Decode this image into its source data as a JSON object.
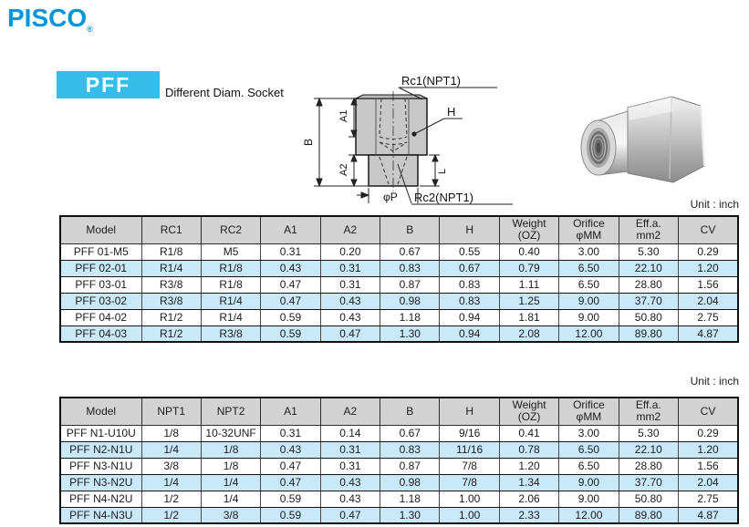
{
  "brand": {
    "logo": "PISCO",
    "registered": "®"
  },
  "header": {
    "series": "PFF",
    "title": "Different Diam. Socket"
  },
  "unit_note": "Unit : inch",
  "diagram": {
    "labels": {
      "rc1": "Rc1(NPT1)",
      "rc2": "Rc2(NPT1)",
      "h": "H",
      "b": "B",
      "a1": "A1",
      "a2": "A2",
      "l": "L",
      "phi_p": "φP"
    }
  },
  "colors": {
    "logo_blue": "#0096dc",
    "accent_cyan": "#35bce9",
    "row_blue": "#c9e9f8",
    "header_gray": "#d3d3d3",
    "body_gray": "#c8c8c8"
  },
  "tables": [
    {
      "name": "rc-spec-table",
      "columns": [
        "Model",
        "RC1",
        "RC2",
        "A1",
        "A2",
        "B",
        "H",
        "Weight\n(OZ)",
        "Orifice\nφMM",
        "Eff.a.\nmm2",
        "CV"
      ],
      "rows": [
        [
          "PFF 01-M5",
          "R1/8",
          "M5",
          "0.31",
          "0.20",
          "0.67",
          "0.55",
          "0.40",
          "3.00",
          "5.30",
          "0.29"
        ],
        [
          "PFF 02-01",
          "R1/4",
          "R1/8",
          "0.43",
          "0.31",
          "0.83",
          "0.67",
          "0.79",
          "6.50",
          "22.10",
          "1.20"
        ],
        [
          "PFF 03-01",
          "R3/8",
          "R1/8",
          "0.47",
          "0.31",
          "0.87",
          "0.83",
          "1.11",
          "6.50",
          "28.80",
          "1.56"
        ],
        [
          "PFF 03-02",
          "R3/8",
          "R1/4",
          "0.47",
          "0.43",
          "0.98",
          "0.83",
          "1.25",
          "9.00",
          "37.70",
          "2.04"
        ],
        [
          "PFF 04-02",
          "R1/2",
          "R1/4",
          "0.59",
          "0.43",
          "1.18",
          "0.94",
          "1.81",
          "9.00",
          "50.80",
          "2.75"
        ],
        [
          "PFF 04-03",
          "R1/2",
          "R3/8",
          "0.59",
          "0.47",
          "1.30",
          "0.94",
          "2.08",
          "12.00",
          "89.80",
          "4.87"
        ]
      ]
    },
    {
      "name": "npt-spec-table",
      "columns": [
        "Model",
        "NPT1",
        "NPT2",
        "A1",
        "A2",
        "B",
        "H",
        "Weight\n(OZ)",
        "Orifice\nφMM",
        "Eff.a.\nmm2",
        "CV"
      ],
      "rows": [
        [
          "PFF N1-U10U",
          "1/8",
          "10-32UNF",
          "0.31",
          "0.14",
          "0.67",
          "9/16",
          "0.41",
          "3.00",
          "5.30",
          "0.29"
        ],
        [
          "PFF N2-N1U",
          "1/4",
          "1/8",
          "0.43",
          "0.31",
          "0.83",
          "11/16",
          "0.78",
          "6.50",
          "22.10",
          "1.20"
        ],
        [
          "PFF N3-N1U",
          "3/8",
          "1/8",
          "0.47",
          "0.31",
          "0.87",
          "7/8",
          "1.20",
          "6.50",
          "28.80",
          "1.56"
        ],
        [
          "PFF N3-N2U",
          "1/4",
          "1/4",
          "0.47",
          "0.43",
          "0.98",
          "7/8",
          "1.34",
          "9.00",
          "37.70",
          "2.04"
        ],
        [
          "PFF N4-N2U",
          "1/2",
          "1/4",
          "0.59",
          "0.43",
          "1.18",
          "1.00",
          "2.06",
          "9.00",
          "50.80",
          "2.75"
        ],
        [
          "PFF N4-N3U",
          "1/2",
          "3/8",
          "0.59",
          "0.47",
          "1.30",
          "1.00",
          "2.33",
          "12.00",
          "89.80",
          "4.87"
        ]
      ]
    }
  ]
}
